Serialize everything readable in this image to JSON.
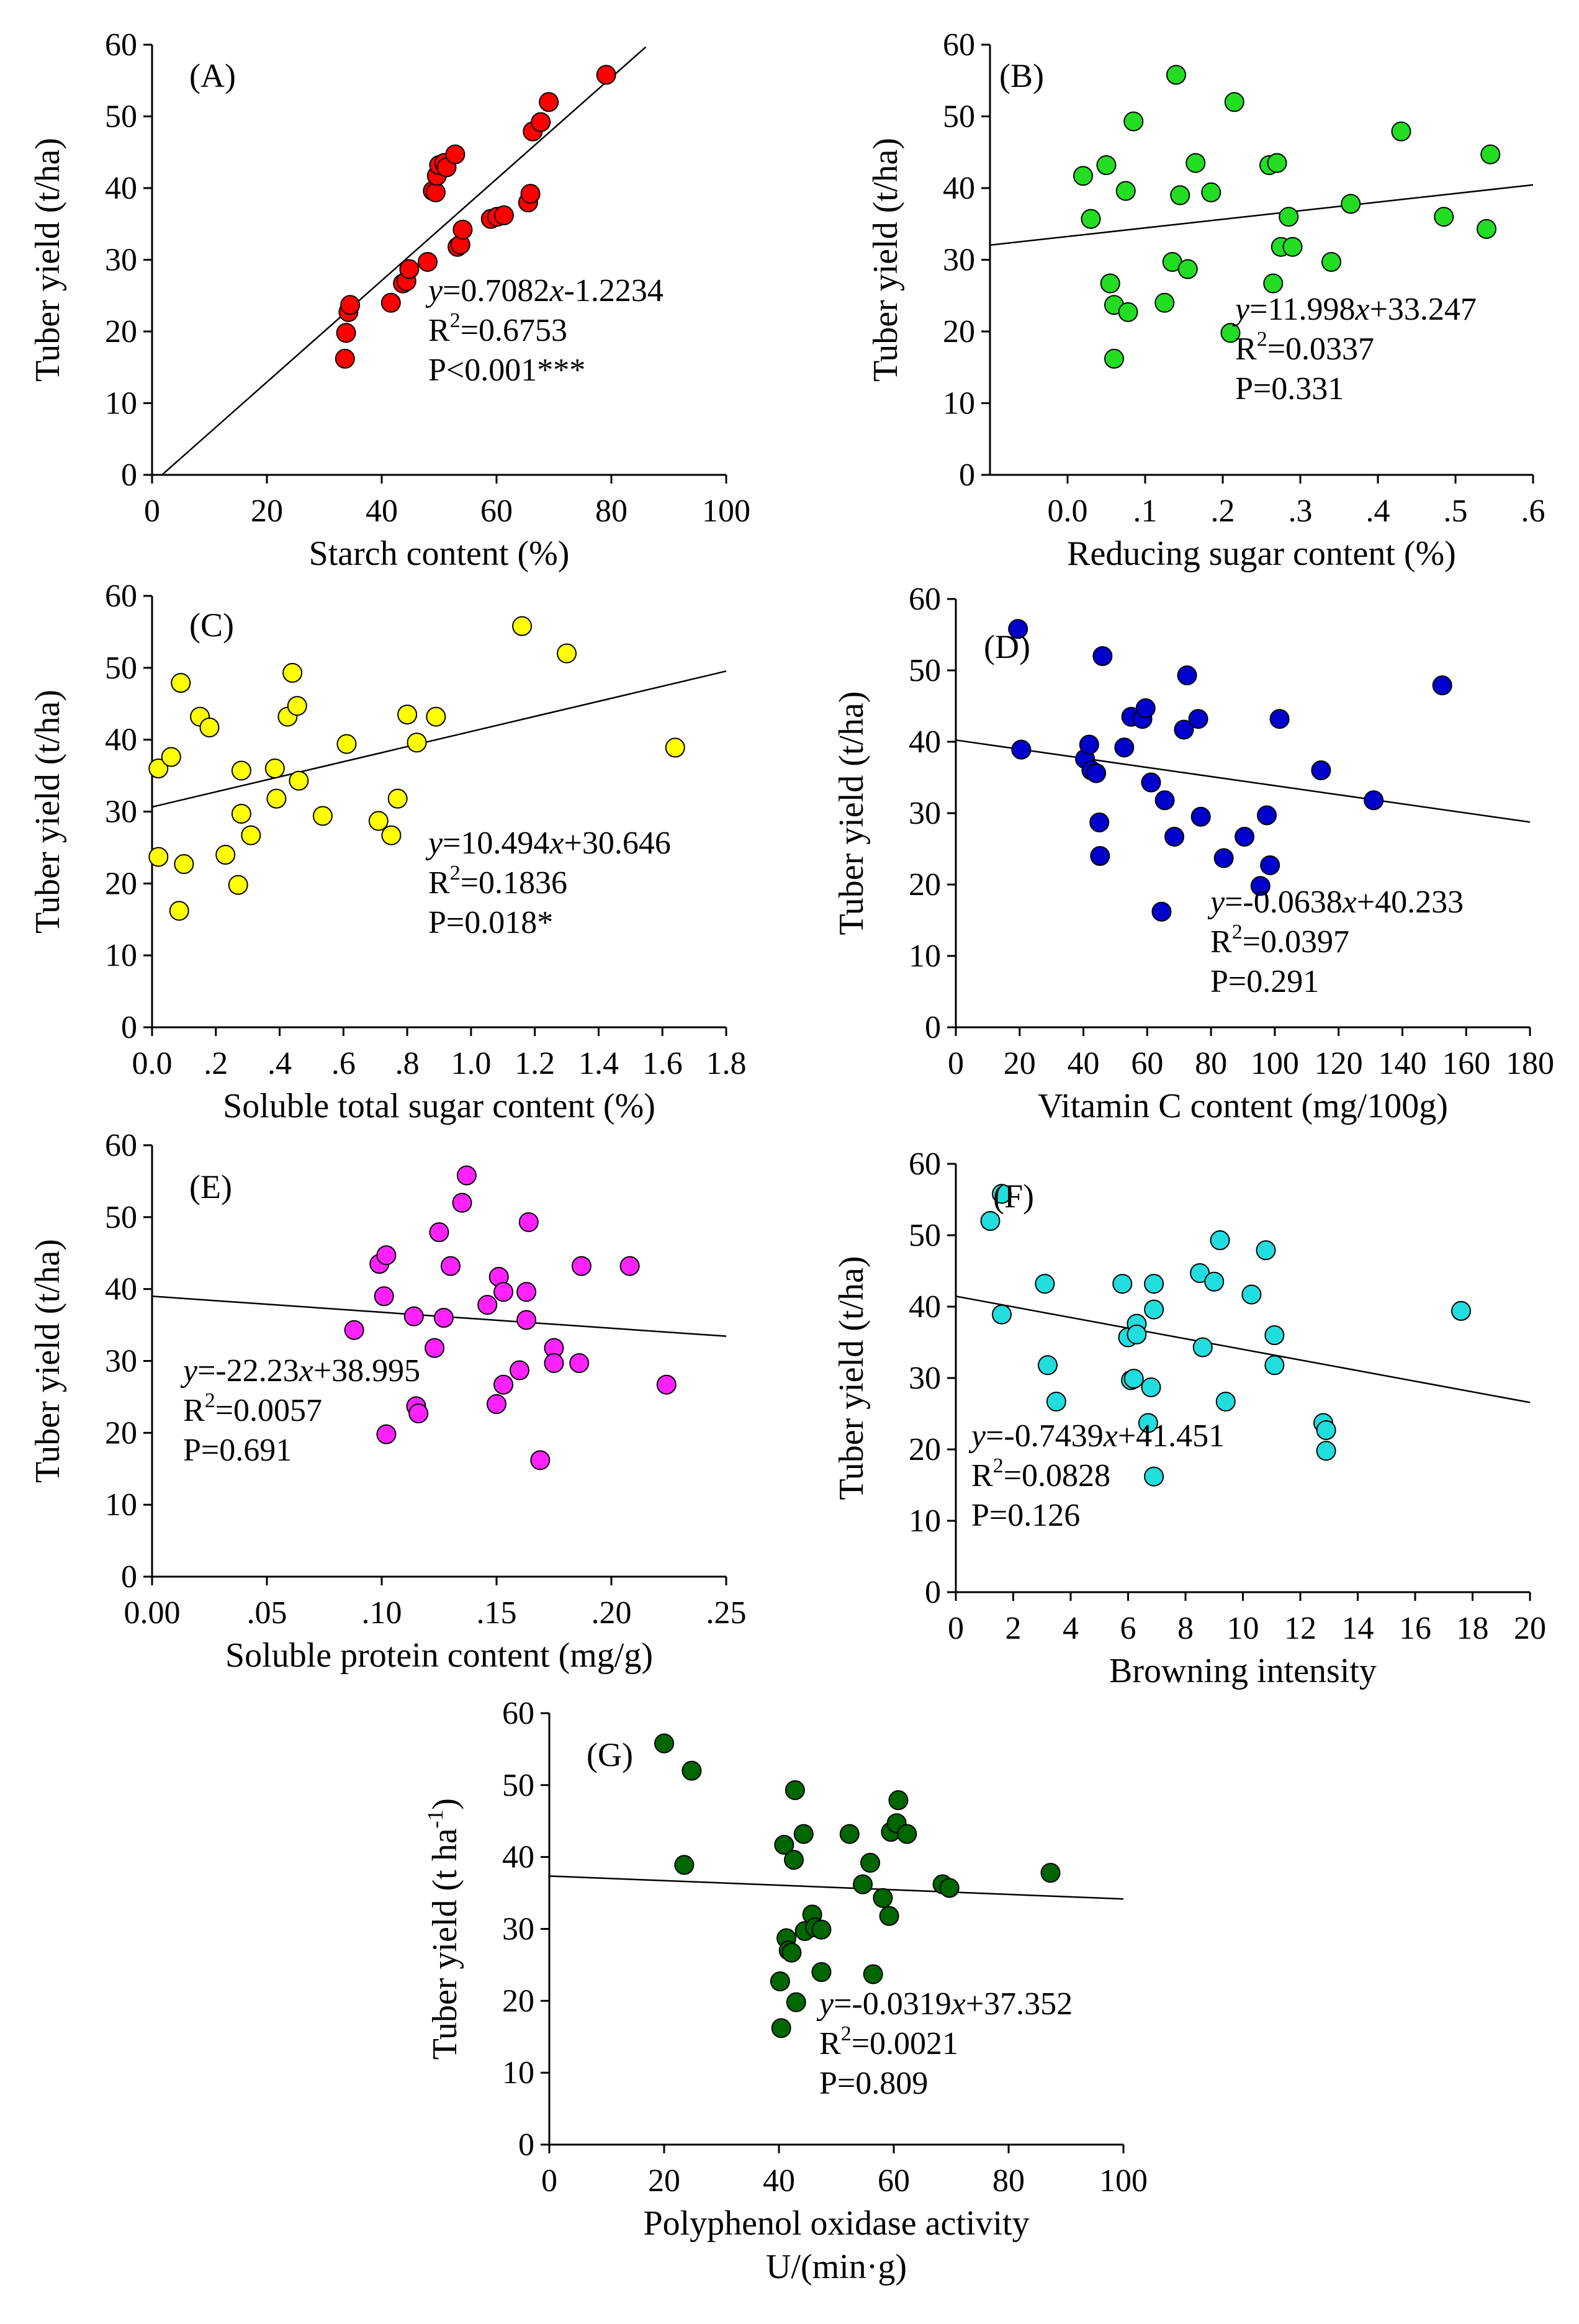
{
  "chart_data": [
    {
      "type": "scatter",
      "label": "(A)",
      "color": "#ff0000",
      "xlabel": "Starch content (%)",
      "ylabel": "Tuber yield (t/ha)",
      "xlim": [
        0,
        100
      ],
      "ylim": [
        0,
        60
      ],
      "xticks": [
        0,
        20,
        40,
        60,
        80,
        100
      ],
      "xtick_labels": [
        "0",
        "20",
        "40",
        "60",
        "80",
        "100"
      ],
      "yticks": [
        0,
        10,
        20,
        30,
        40,
        50,
        60
      ],
      "ytick_labels": [
        "0",
        "10",
        "20",
        "30",
        "40",
        "50",
        "60"
      ],
      "equation": "y=0.7082x-1.2234",
      "r2_label": "R",
      "r2_value": "=0.6753",
      "p_text": "P<0.001***",
      "slope": 0.7082,
      "intercept": -1.2234,
      "line_x": [
        1.7,
        86
      ],
      "points": [
        [
          33.6,
          16.2
        ],
        [
          33.8,
          19.8
        ],
        [
          34.2,
          22.7
        ],
        [
          34.5,
          23.7
        ],
        [
          41.6,
          24
        ],
        [
          43.7,
          26.7
        ],
        [
          44.3,
          27
        ],
        [
          44.8,
          28.7
        ],
        [
          48,
          29.7
        ],
        [
          48.9,
          39.6
        ],
        [
          49.4,
          39.4
        ],
        [
          49.6,
          41.7
        ],
        [
          50,
          43.2
        ],
        [
          50.9,
          43.5
        ],
        [
          51.3,
          42.9
        ],
        [
          52.8,
          44.7
        ],
        [
          53.2,
          31.8
        ],
        [
          53.7,
          32.1
        ],
        [
          54.1,
          34.2
        ],
        [
          59,
          35.7
        ],
        [
          60.1,
          36
        ],
        [
          61.3,
          36.2
        ],
        [
          65.5,
          38
        ],
        [
          65.9,
          39.2
        ],
        [
          66.3,
          47.9
        ],
        [
          67.7,
          49.2
        ],
        [
          69.1,
          52
        ],
        [
          79.1,
          55.8
        ]
      ]
    },
    {
      "type": "scatter",
      "label": "(B)",
      "color": "#22dd22",
      "xlabel": "Reducing sugar content (%)",
      "ylabel": "Tuber yield (t/ha)",
      "xlim": [
        -0.1,
        0.6
      ],
      "ylim": [
        0,
        60
      ],
      "xticks": [
        0,
        0.1,
        0.2,
        0.3,
        0.4,
        0.5,
        0.6
      ],
      "xtick_labels": [
        "0.0",
        ".1",
        ".2",
        ".3",
        ".4",
        ".5",
        ".6"
      ],
      "yticks": [
        0,
        10,
        20,
        30,
        40,
        50,
        60
      ],
      "ytick_labels": [
        "0",
        "10",
        "20",
        "30",
        "40",
        "50",
        "60"
      ],
      "equation": "y=11.998x+33.247",
      "r2_label": "R",
      "r2_value": "=0.0337",
      "p_text": "P=0.331",
      "slope": 11.998,
      "intercept": 33.247,
      "line_x": [
        -0.1,
        0.6
      ],
      "points": [
        [
          0.02,
          41.7
        ],
        [
          0.03,
          35.7
        ],
        [
          0.05,
          43.2
        ],
        [
          0.055,
          26.7
        ],
        [
          0.06,
          23.7
        ],
        [
          0.06,
          16.2
        ],
        [
          0.075,
          39.6
        ],
        [
          0.078,
          22.7
        ],
        [
          0.085,
          49.3
        ],
        [
          0.125,
          24
        ],
        [
          0.135,
          29.7
        ],
        [
          0.14,
          55.8
        ],
        [
          0.145,
          39
        ],
        [
          0.155,
          28.7
        ],
        [
          0.165,
          43.5
        ],
        [
          0.185,
          39.4
        ],
        [
          0.21,
          19.8
        ],
        [
          0.215,
          52
        ],
        [
          0.26,
          43.2
        ],
        [
          0.265,
          26.7
        ],
        [
          0.27,
          43.5
        ],
        [
          0.275,
          31.8
        ],
        [
          0.285,
          36
        ],
        [
          0.29,
          31.8
        ],
        [
          0.34,
          29.7
        ],
        [
          0.365,
          37.8
        ],
        [
          0.43,
          47.9
        ],
        [
          0.485,
          36
        ],
        [
          0.54,
          34.3
        ],
        [
          0.545,
          44.7
        ]
      ]
    },
    {
      "type": "scatter",
      "label": "(C)",
      "color": "#ffff00",
      "xlabel": "Soluble total sugar content (%)",
      "ylabel": "Tuber yield (t/ha)",
      "xlim": [
        0,
        1.8
      ],
      "ylim": [
        0,
        60
      ],
      "xticks": [
        0,
        0.2,
        0.4,
        0.6,
        0.8,
        1.0,
        1.2,
        1.4,
        1.6,
        1.8
      ],
      "xtick_labels": [
        "0.0",
        ".2",
        ".4",
        ".6",
        ".8",
        "1.0",
        "1.2",
        "1.4",
        "1.6",
        "1.8"
      ],
      "yticks": [
        0,
        10,
        20,
        30,
        40,
        50,
        60
      ],
      "ytick_labels": [
        "0",
        "10",
        "20",
        "30",
        "40",
        "50",
        "60"
      ],
      "equation": "y=10.494x+30.646",
      "r2_label": "R",
      "r2_value": "=0.1836",
      "p_text": "P=0.018*",
      "slope": 10.494,
      "intercept": 30.646,
      "line_x": [
        0,
        1.8
      ],
      "points": [
        [
          0.02,
          23.7
        ],
        [
          0.02,
          36
        ],
        [
          0.06,
          37.6
        ],
        [
          0.085,
          16.2
        ],
        [
          0.09,
          47.9
        ],
        [
          0.1,
          22.7
        ],
        [
          0.15,
          43.2
        ],
        [
          0.18,
          41.7
        ],
        [
          0.23,
          24
        ],
        [
          0.27,
          19.8
        ],
        [
          0.28,
          29.7
        ],
        [
          0.28,
          35.7
        ],
        [
          0.31,
          26.7
        ],
        [
          0.385,
          36
        ],
        [
          0.39,
          31.8
        ],
        [
          0.425,
          43.2
        ],
        [
          0.44,
          49.3
        ],
        [
          0.455,
          44.7
        ],
        [
          0.46,
          34.3
        ],
        [
          0.535,
          29.4
        ],
        [
          0.61,
          39.4
        ],
        [
          0.71,
          28.7
        ],
        [
          0.75,
          26.7
        ],
        [
          0.77,
          31.8
        ],
        [
          0.8,
          43.5
        ],
        [
          0.83,
          39.6
        ],
        [
          0.89,
          43.2
        ],
        [
          1.16,
          55.8
        ],
        [
          1.3,
          52
        ],
        [
          1.64,
          38.9
        ]
      ]
    },
    {
      "type": "scatter",
      "label": "(D)",
      "color": "#0000cc",
      "xlabel": "Vitamin C content (mg/100g)",
      "ylabel": "Tuber yield (t/ha)",
      "xlim": [
        0,
        180
      ],
      "ylim": [
        0,
        60
      ],
      "xticks": [
        0,
        20,
        40,
        60,
        80,
        100,
        120,
        140,
        160,
        180
      ],
      "xtick_labels": [
        "0",
        "20",
        "40",
        "60",
        "80",
        "100",
        "120",
        "140",
        "160",
        "180"
      ],
      "yticks": [
        0,
        10,
        20,
        30,
        40,
        50,
        60
      ],
      "ytick_labels": [
        "0",
        "10",
        "20",
        "30",
        "40",
        "50",
        "60"
      ],
      "equation": "y=-0.0638x+40.233",
      "r2_label": "R",
      "r2_value": "=0.0397",
      "p_text": "P=0.291",
      "slope": -0.0638,
      "intercept": 40.233,
      "line_x": [
        0,
        180
      ],
      "points": [
        [
          19.5,
          55.8
        ],
        [
          20.5,
          38.9
        ],
        [
          40.5,
          37.6
        ],
        [
          41.8,
          39.6
        ],
        [
          42.5,
          36
        ],
        [
          44,
          35.6
        ],
        [
          45,
          28.7
        ],
        [
          45.2,
          24
        ],
        [
          46,
          52
        ],
        [
          52.8,
          39.2
        ],
        [
          55,
          43.5
        ],
        [
          58.5,
          43.2
        ],
        [
          59.5,
          44.7
        ],
        [
          61.2,
          34.3
        ],
        [
          64.5,
          16.2
        ],
        [
          65.5,
          31.8
        ],
        [
          68.5,
          26.7
        ],
        [
          71.5,
          41.7
        ],
        [
          72.5,
          49.3
        ],
        [
          76,
          43.2
        ],
        [
          76.8,
          29.5
        ],
        [
          84,
          23.7
        ],
        [
          90.5,
          26.7
        ],
        [
          95.5,
          19.8
        ],
        [
          97.5,
          29.7
        ],
        [
          98.5,
          22.7
        ],
        [
          101.5,
          43.2
        ],
        [
          114.5,
          36
        ],
        [
          131,
          31.8
        ],
        [
          152.5,
          47.9
        ]
      ]
    },
    {
      "type": "scatter",
      "label": "(E)",
      "color": "#ff22ff",
      "xlabel": "Soluble protein content (mg/g)",
      "ylabel": "Tuber yield (t/ha)",
      "xlim": [
        0,
        0.25
      ],
      "ylim": [
        0,
        60
      ],
      "xticks": [
        0,
        0.05,
        0.1,
        0.15,
        0.2,
        0.25
      ],
      "xtick_labels": [
        "0.00",
        ".05",
        ".10",
        ".15",
        ".20",
        ".25"
      ],
      "yticks": [
        0,
        10,
        20,
        30,
        40,
        50,
        60
      ],
      "ytick_labels": [
        "0",
        "10",
        "20",
        "30",
        "40",
        "50",
        "60"
      ],
      "equation": "y=-22.23x+38.995",
      "r2_label": "R",
      "r2_value": "=0.0057",
      "p_text": "P=0.691",
      "slope": -22.23,
      "intercept": 38.995,
      "line_x": [
        0,
        0.25
      ],
      "points": [
        [
          0.088,
          34.3
        ],
        [
          0.099,
          43.5
        ],
        [
          0.101,
          39
        ],
        [
          0.102,
          19.8
        ],
        [
          0.102,
          44.7
        ],
        [
          0.114,
          36.2
        ],
        [
          0.115,
          23.7
        ],
        [
          0.116,
          22.7
        ],
        [
          0.123,
          31.8
        ],
        [
          0.125,
          47.9
        ],
        [
          0.127,
          36
        ],
        [
          0.13,
          43.2
        ],
        [
          0.135,
          52
        ],
        [
          0.137,
          55.8
        ],
        [
          0.146,
          37.8
        ],
        [
          0.15,
          24
        ],
        [
          0.151,
          41.7
        ],
        [
          0.153,
          39.6
        ],
        [
          0.153,
          26.7
        ],
        [
          0.16,
          28.7
        ],
        [
          0.163,
          35.7
        ],
        [
          0.163,
          39.6
        ],
        [
          0.164,
          49.3
        ],
        [
          0.169,
          16.2
        ],
        [
          0.175,
          31.8
        ],
        [
          0.175,
          29.7
        ],
        [
          0.186,
          29.7
        ],
        [
          0.187,
          43.2
        ],
        [
          0.208,
          43.2
        ],
        [
          0.224,
          26.7
        ]
      ]
    },
    {
      "type": "scatter",
      "label": "(F)",
      "color": "#22dddd",
      "xlabel": "Browning intensity",
      "ylabel": "Tuber yield (t/ha)",
      "xlim": [
        0,
        20
      ],
      "ylim": [
        0,
        60
      ],
      "xticks": [
        0,
        2,
        4,
        6,
        8,
        10,
        12,
        14,
        16,
        18,
        20
      ],
      "xtick_labels": [
        "0",
        "2",
        "4",
        "6",
        "8",
        "10",
        "12",
        "14",
        "16",
        "18",
        "20"
      ],
      "yticks": [
        0,
        10,
        20,
        30,
        40,
        50,
        60
      ],
      "ytick_labels": [
        "0",
        "10",
        "20",
        "30",
        "40",
        "50",
        "60"
      ],
      "equation": "y=-0.7439x+41.451",
      "r2_label": "R",
      "r2_value": "=0.0828",
      "p_text": "P=0.126",
      "slope": -0.7439,
      "intercept": 41.451,
      "line_x": [
        0,
        20
      ],
      "points": [
        [
          1.2,
          52
        ],
        [
          1.6,
          55.8
        ],
        [
          1.6,
          38.9
        ],
        [
          3.1,
          43.2
        ],
        [
          3.2,
          31.8
        ],
        [
          3.5,
          26.7
        ],
        [
          5.8,
          43.2
        ],
        [
          6,
          35.7
        ],
        [
          6.1,
          29.7
        ],
        [
          6.2,
          29.9
        ],
        [
          6.3,
          37.6
        ],
        [
          6.3,
          36.1
        ],
        [
          6.7,
          23.7
        ],
        [
          6.8,
          28.7
        ],
        [
          6.9,
          43.2
        ],
        [
          6.9,
          39.6
        ],
        [
          6.9,
          16.2
        ],
        [
          8.5,
          44.7
        ],
        [
          8.6,
          34.3
        ],
        [
          9,
          43.5
        ],
        [
          9.2,
          49.3
        ],
        [
          9.4,
          26.7
        ],
        [
          10.3,
          41.7
        ],
        [
          10.8,
          47.9
        ],
        [
          11.1,
          31.8
        ],
        [
          11.1,
          36
        ],
        [
          12.8,
          23.7
        ],
        [
          12.9,
          22.7
        ],
        [
          12.9,
          19.8
        ],
        [
          17.6,
          39.4
        ]
      ]
    },
    {
      "type": "scatter",
      "label": "(G)",
      "color": "#006600",
      "xlabel": "Polyphenol oxidase activity",
      "xlabel2": "U/(min·g)",
      "ylabel": "Tuber yield (t ha",
      "ylabel_sup": "-1",
      "ylabel_end": ")",
      "xlim": [
        0,
        100
      ],
      "ylim": [
        0,
        60
      ],
      "xticks": [
        0,
        20,
        40,
        60,
        80,
        100
      ],
      "xtick_labels": [
        "0",
        "20",
        "40",
        "60",
        "80",
        "100"
      ],
      "yticks": [
        0,
        10,
        20,
        30,
        40,
        50,
        60
      ],
      "ytick_labels": [
        "0",
        "10",
        "20",
        "30",
        "40",
        "50",
        "60"
      ],
      "equation": "y=-0.0319x+37.352",
      "r2_label": "R",
      "r2_value": "=0.0021",
      "p_text": "P=0.809",
      "slope": -0.0319,
      "intercept": 37.352,
      "line_x": [
        0,
        100
      ],
      "points": [
        [
          20,
          55.8
        ],
        [
          23.5,
          38.9
        ],
        [
          24.8,
          52
        ],
        [
          40.2,
          22.7
        ],
        [
          40.4,
          16.2
        ],
        [
          40.9,
          41.7
        ],
        [
          41.3,
          28.7
        ],
        [
          41.7,
          27
        ],
        [
          42.2,
          26.7
        ],
        [
          42.6,
          39.6
        ],
        [
          42.8,
          49.3
        ],
        [
          43,
          19.8
        ],
        [
          44.3,
          43.2
        ],
        [
          44.5,
          29.7
        ],
        [
          45.8,
          32
        ],
        [
          46.3,
          30.2
        ],
        [
          47.4,
          29.9
        ],
        [
          47.4,
          24
        ],
        [
          52.3,
          43.2
        ],
        [
          54.6,
          36.2
        ],
        [
          55.9,
          39.2
        ],
        [
          56.4,
          23.7
        ],
        [
          58.1,
          34.3
        ],
        [
          59.2,
          31.8
        ],
        [
          59.5,
          43.5
        ],
        [
          60.5,
          44.7
        ],
        [
          60.8,
          47.9
        ],
        [
          62.3,
          43.2
        ],
        [
          68.5,
          36.2
        ],
        [
          69.7,
          35.7
        ],
        [
          87.3,
          37.8
        ]
      ]
    }
  ]
}
